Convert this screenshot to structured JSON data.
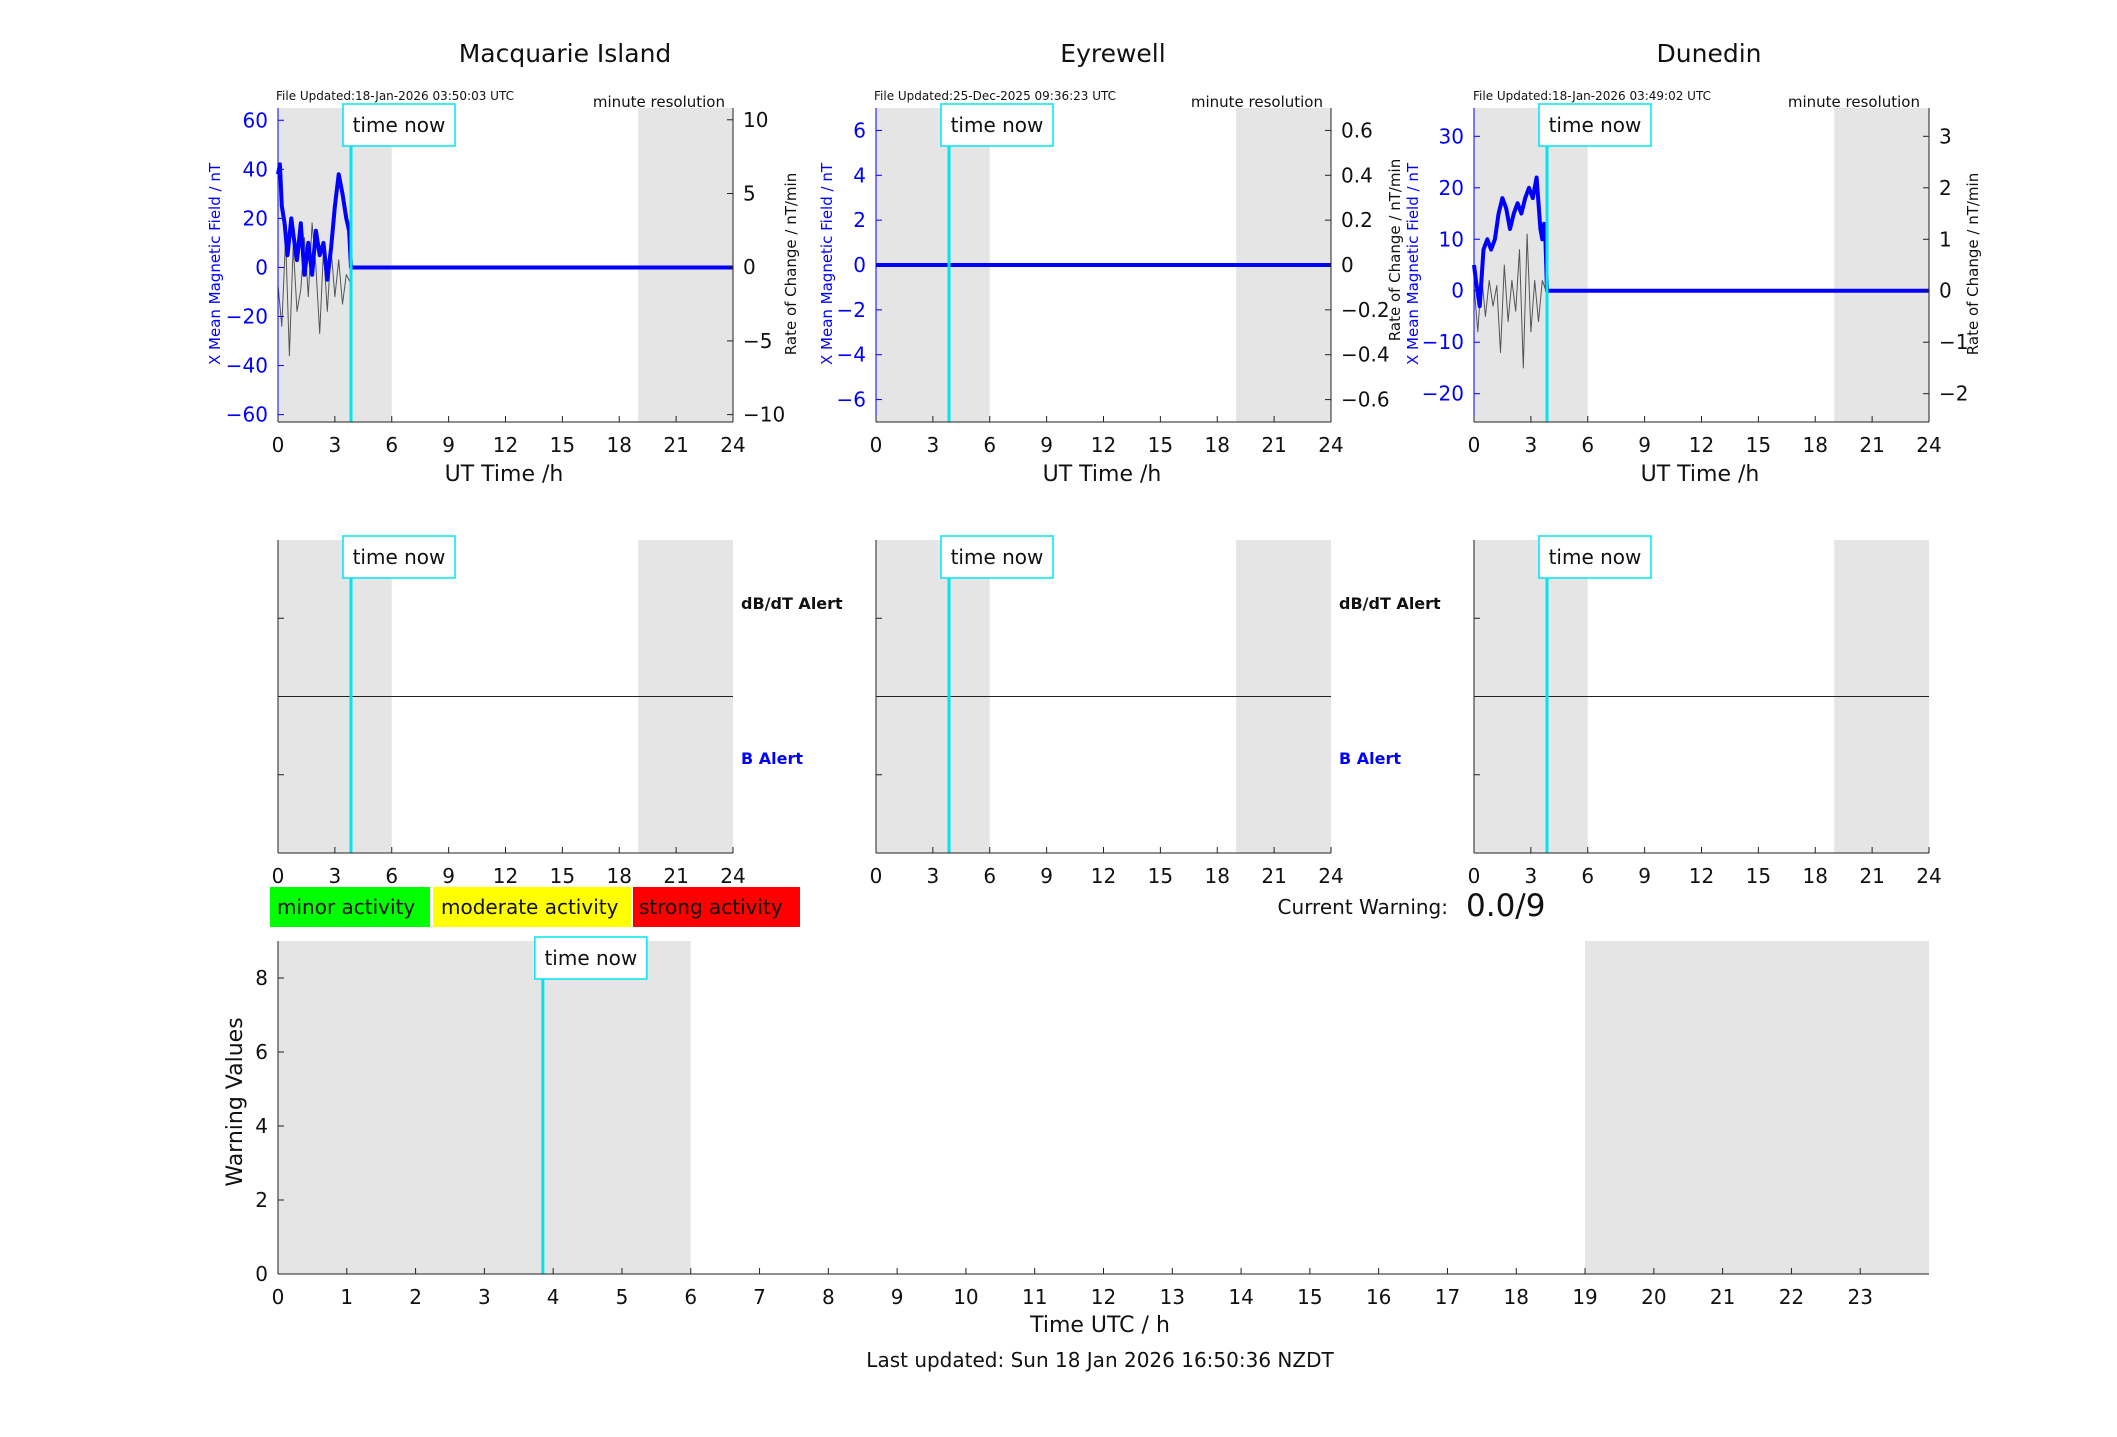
{
  "time_now_label": "time now",
  "minute_resolution_label": "minute resolution",
  "ut_axis_label": "UT Time /h",
  "x_mean_label": "X Mean Magnetic Field / nT",
  "rate_label": "Rate of Change / nT/min",
  "dbdt_alert_label": "dB/dT Alert",
  "b_alert_label": "B Alert",
  "legend": {
    "minor": "minor activity",
    "moderate": "moderate activity",
    "strong": "strong activity"
  },
  "current_warning_label": "Current Warning:",
  "current_warning_value": "0.0/9",
  "warning_ylabel": "Warning Values",
  "warning_xlabel": "Time UTC / h",
  "last_updated": "Last updated: Sun 18 Jan 2026 16:50:36 NZDT",
  "colors": {
    "field": "#0000ff",
    "rate": "#555555",
    "time_now": "#00e5ee",
    "night_shade": "#e5e5e5",
    "minor": "#00ff00",
    "moderate": "#ffff00",
    "strong": "#ff0000"
  },
  "stations": [
    {
      "name": "Macquarie Island",
      "file_updated": "File Updated:18-Jan-2026 03:50:03 UTC",
      "left_ticks": [
        "60",
        "40",
        "20",
        "0",
        "-20",
        "-40",
        "-60"
      ],
      "right_ticks": [
        "10",
        "5",
        "0",
        "-5",
        "-10"
      ]
    },
    {
      "name": "Eyrewell",
      "file_updated": "File Updated:25-Dec-2025 09:36:23 UTC",
      "left_ticks": [
        "6",
        "4",
        "2",
        "0",
        "-2",
        "-4",
        "-6"
      ],
      "right_ticks": [
        "0.6",
        "0.4",
        "0.2",
        "0",
        "-0.2",
        "-0.4",
        "-0.6"
      ]
    },
    {
      "name": "Dunedin",
      "file_updated": "File Updated:18-Jan-2026 03:49:02 UTC",
      "left_ticks": [
        "30",
        "20",
        "10",
        "0",
        "-10",
        "-20"
      ],
      "right_ticks": [
        "3",
        "2",
        "1",
        "0",
        "-1",
        "-2"
      ]
    }
  ],
  "chart_data": [
    {
      "type": "line",
      "title": "Macquarie Island",
      "xlabel": "UT Time /h",
      "ylabel": "X Mean Magnetic Field / nT",
      "y2label": "Rate of Change / nT/min",
      "xlim": [
        0,
        24
      ],
      "ylim": [
        -63,
        65
      ],
      "y2lim": [
        -10.5,
        10.8
      ],
      "x_ticks": [
        0,
        3,
        6,
        9,
        12,
        15,
        18,
        21,
        24
      ],
      "y_ticks": [
        -60,
        -40,
        -20,
        0,
        20,
        40,
        60
      ],
      "y2_ticks": [
        -10,
        -5,
        0,
        5,
        10
      ],
      "time_now": 3.85,
      "shaded": [
        [
          0,
          6
        ],
        [
          19,
          24
        ]
      ],
      "series": [
        {
          "axis": "left",
          "color": "#0000ff",
          "x": [
            0,
            0.1,
            0.2,
            0.35,
            0.5,
            0.7,
            0.9,
            1.0,
            1.2,
            1.4,
            1.6,
            1.8,
            2.0,
            2.2,
            2.4,
            2.6,
            2.8,
            3.0,
            3.2,
            3.4,
            3.6,
            3.75,
            3.85,
            4.0,
            24
          ],
          "values": [
            38,
            42,
            25,
            18,
            5,
            20,
            8,
            3,
            18,
            -3,
            10,
            -3,
            15,
            5,
            10,
            -5,
            8,
            25,
            38,
            30,
            20,
            15,
            0,
            0,
            0
          ]
        },
        {
          "axis": "right",
          "color": "#555555",
          "x": [
            0,
            0.2,
            0.4,
            0.6,
            0.8,
            1.0,
            1.2,
            1.4,
            1.6,
            1.8,
            2.0,
            2.2,
            2.4,
            2.6,
            2.8,
            3.0,
            3.2,
            3.4,
            3.6,
            3.8
          ],
          "values": [
            -1.2,
            -4,
            2,
            -6,
            1.5,
            -3,
            -1.5,
            2,
            -2,
            3,
            0,
            -4.5,
            1.2,
            -3,
            1.2,
            -2,
            0.5,
            -2.5,
            -0.5,
            -1
          ]
        }
      ]
    },
    {
      "type": "line",
      "title": "Eyrewell",
      "xlabel": "UT Time /h",
      "ylabel": "X Mean Magnetic Field / nT",
      "y2label": "Rate of Change / nT/min",
      "xlim": [
        0,
        24
      ],
      "ylim": [
        -7,
        7
      ],
      "y2lim": [
        -0.7,
        0.7
      ],
      "x_ticks": [
        0,
        3,
        6,
        9,
        12,
        15,
        18,
        21,
        24
      ],
      "y_ticks": [
        -6,
        -4,
        -2,
        0,
        2,
        4,
        6
      ],
      "y2_ticks": [
        -0.6,
        -0.4,
        -0.2,
        0,
        0.2,
        0.4,
        0.6
      ],
      "time_now": 3.85,
      "shaded": [
        [
          0,
          6
        ],
        [
          19,
          24
        ]
      ],
      "series": [
        {
          "axis": "left",
          "color": "#0000ff",
          "x": [
            0,
            24
          ],
          "values": [
            0,
            0
          ]
        }
      ]
    },
    {
      "type": "line",
      "title": "Dunedin",
      "xlabel": "UT Time /h",
      "ylabel": "X Mean Magnetic Field / nT",
      "y2label": "Rate of Change / nT/min",
      "xlim": [
        0,
        24
      ],
      "ylim": [
        -25.5,
        35.5
      ],
      "y2lim": [
        -2.55,
        3.55
      ],
      "x_ticks": [
        0,
        3,
        6,
        9,
        12,
        15,
        18,
        21,
        24
      ],
      "y_ticks": [
        -20,
        -10,
        0,
        10,
        20,
        30
      ],
      "y2_ticks": [
        -2,
        -1,
        0,
        1,
        2,
        3
      ],
      "time_now": 3.85,
      "shaded": [
        [
          0,
          6
        ],
        [
          19,
          24
        ]
      ],
      "series": [
        {
          "axis": "left",
          "color": "#0000ff",
          "x": [
            0,
            0.1,
            0.3,
            0.5,
            0.7,
            0.9,
            1.1,
            1.3,
            1.5,
            1.7,
            1.9,
            2.1,
            2.3,
            2.5,
            2.7,
            2.9,
            3.1,
            3.3,
            3.5,
            3.6,
            3.7,
            3.75,
            3.85,
            4.0,
            24
          ],
          "values": [
            5,
            2,
            -3,
            8,
            10,
            8,
            10,
            15,
            18,
            16,
            12,
            15,
            17,
            15,
            18,
            20,
            18,
            22,
            12,
            10,
            13,
            12,
            0,
            0,
            0
          ]
        },
        {
          "axis": "right",
          "color": "#555555",
          "x": [
            0,
            0.2,
            0.4,
            0.6,
            0.8,
            1.0,
            1.2,
            1.4,
            1.6,
            1.8,
            2.0,
            2.2,
            2.4,
            2.6,
            2.8,
            3.0,
            3.2,
            3.4,
            3.6,
            3.8
          ],
          "values": [
            0.1,
            -0.8,
            0.3,
            -0.5,
            0.2,
            -0.3,
            0.1,
            -1.2,
            0.5,
            -0.6,
            0.2,
            -0.4,
            0.8,
            -1.5,
            1.1,
            -0.8,
            0.2,
            -0.6,
            0.2,
            0
          ]
        }
      ]
    },
    {
      "type": "bar",
      "title": "",
      "xlabel": "",
      "y_categories": [
        "dB/dT Alert",
        "B Alert"
      ],
      "xlim": [
        0,
        24
      ],
      "x_ticks": [
        0,
        3,
        6,
        9,
        12,
        15,
        18,
        21,
        24
      ],
      "time_now": 3.85,
      "shaded": [
        [
          0,
          6
        ],
        [
          19,
          24
        ]
      ],
      "values": []
    },
    {
      "type": "bar",
      "title": "",
      "xlabel": "",
      "y_categories": [
        "dB/dT Alert",
        "B Alert"
      ],
      "xlim": [
        0,
        24
      ],
      "x_ticks": [
        0,
        3,
        6,
        9,
        12,
        15,
        18,
        21,
        24
      ],
      "time_now": 3.85,
      "shaded": [
        [
          0,
          6
        ],
        [
          19,
          24
        ]
      ],
      "values": []
    },
    {
      "type": "bar",
      "title": "",
      "xlabel": "",
      "y_categories": [
        "dB/dT Alert",
        "B Alert"
      ],
      "xlim": [
        0,
        24
      ],
      "x_ticks": [
        0,
        3,
        6,
        9,
        12,
        15,
        18,
        21,
        24
      ],
      "time_now": 3.85,
      "shaded": [
        [
          0,
          6
        ],
        [
          19,
          24
        ]
      ],
      "values": []
    },
    {
      "type": "bar",
      "title": "",
      "xlabel": "Time UTC / h",
      "ylabel": "Warning Values",
      "xlim": [
        0,
        24
      ],
      "ylim": [
        0,
        9
      ],
      "x_ticks": [
        0,
        1,
        2,
        3,
        4,
        5,
        6,
        7,
        8,
        9,
        10,
        11,
        12,
        13,
        14,
        15,
        16,
        17,
        18,
        19,
        20,
        21,
        22,
        23
      ],
      "y_ticks": [
        0,
        2,
        4,
        6,
        8
      ],
      "time_now": 3.85,
      "shaded": [
        [
          0,
          6
        ],
        [
          19,
          24
        ]
      ],
      "values": []
    }
  ]
}
